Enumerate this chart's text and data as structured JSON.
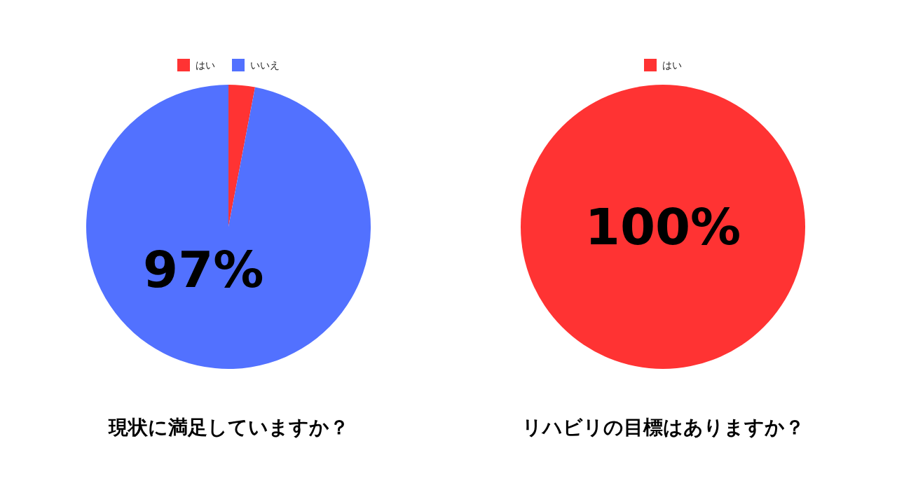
{
  "chart_data": [
    {
      "type": "pie",
      "title": "現状に満足していますか？",
      "categories": [
        "はい",
        "いいえ"
      ],
      "values": [
        3,
        97
      ],
      "colors": [
        "#ff3333",
        "#5271ff"
      ],
      "value_labels": [
        null,
        "97%"
      ],
      "legend": "top"
    },
    {
      "type": "pie",
      "title": "リハビリの目標はありますか？",
      "categories": [
        "はい"
      ],
      "values": [
        100
      ],
      "colors": [
        "#ff3333"
      ],
      "value_labels": [
        "100%"
      ],
      "legend": "top"
    }
  ]
}
